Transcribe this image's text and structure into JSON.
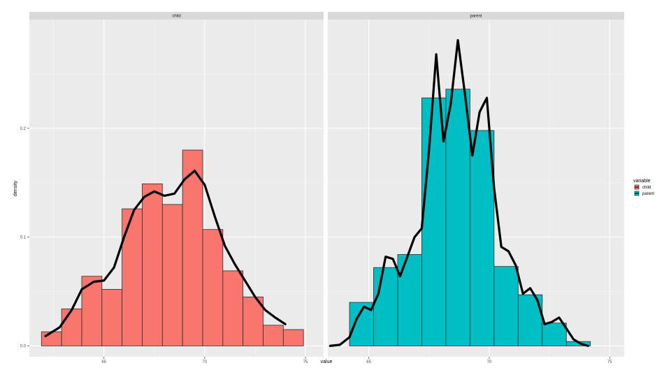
{
  "chart_data": {
    "type": "bar",
    "xlabel": "value",
    "ylabel": "density",
    "ylim": [
      -0.01,
      0.3
    ],
    "yticks": [
      0.0,
      0.1,
      0.2
    ],
    "y_tick_labels": [
      "0.0",
      "0.1",
      "0.2"
    ],
    "grid": true,
    "legend": {
      "title": "variable",
      "position": "right",
      "entries": [
        {
          "name": "child",
          "color": "#F8766D"
        },
        {
          "name": "parent",
          "color": "#00BFC4"
        }
      ]
    },
    "panels": [
      {
        "name": "child",
        "color": "#F8766D",
        "xlim": [
          61.3,
          75.9
        ],
        "xticks": [
          65,
          70,
          75
        ],
        "x_tick_labels": [
          "65",
          "70",
          "75"
        ],
        "bins": [
          {
            "x0": 61.9,
            "x1": 62.9,
            "density": 0.013
          },
          {
            "x0": 62.9,
            "x1": 63.9,
            "density": 0.034
          },
          {
            "x0": 63.9,
            "x1": 64.9,
            "density": 0.064
          },
          {
            "x0": 64.9,
            "x1": 65.9,
            "density": 0.052
          },
          {
            "x0": 65.9,
            "x1": 66.9,
            "density": 0.126
          },
          {
            "x0": 66.9,
            "x1": 67.9,
            "density": 0.149
          },
          {
            "x0": 67.9,
            "x1": 68.9,
            "density": 0.13
          },
          {
            "x0": 68.9,
            "x1": 69.9,
            "density": 0.18
          },
          {
            "x0": 69.9,
            "x1": 70.9,
            "density": 0.107
          },
          {
            "x0": 70.9,
            "x1": 71.9,
            "density": 0.069
          },
          {
            "x0": 71.9,
            "x1": 72.9,
            "density": 0.045
          },
          {
            "x0": 72.9,
            "x1": 73.9,
            "density": 0.019
          },
          {
            "x0": 73.9,
            "x1": 74.9,
            "density": 0.015
          }
        ],
        "density_curve": {
          "x": [
            62.1,
            62.8,
            63.4,
            63.9,
            64.5,
            65.0,
            65.5,
            66.0,
            66.5,
            67.0,
            67.5,
            68.0,
            68.5,
            69.0,
            69.5,
            70.0,
            70.5,
            71.0,
            71.5,
            72.0,
            72.5,
            73.0,
            73.5,
            74.0
          ],
          "y": [
            0.009,
            0.017,
            0.033,
            0.052,
            0.059,
            0.06,
            0.072,
            0.1,
            0.125,
            0.137,
            0.142,
            0.138,
            0.14,
            0.153,
            0.161,
            0.148,
            0.119,
            0.092,
            0.075,
            0.06,
            0.045,
            0.033,
            0.026,
            0.02
          ]
        }
      },
      {
        "name": "parent",
        "color": "#00BFC4",
        "xlim": [
          63.3,
          75.6
        ],
        "xticks": [
          65,
          70,
          75
        ],
        "x_tick_labels": [
          "65",
          "70",
          "75"
        ],
        "bins": [
          {
            "x0": 64.2,
            "x1": 65.2,
            "density": 0.04
          },
          {
            "x0": 65.2,
            "x1": 66.2,
            "density": 0.072
          },
          {
            "x0": 66.2,
            "x1": 67.2,
            "density": 0.084
          },
          {
            "x0": 67.2,
            "x1": 68.2,
            "density": 0.228
          },
          {
            "x0": 68.2,
            "x1": 69.2,
            "density": 0.236
          },
          {
            "x0": 69.2,
            "x1": 70.2,
            "density": 0.198
          },
          {
            "x0": 70.2,
            "x1": 71.2,
            "density": 0.073
          },
          {
            "x0": 71.2,
            "x1": 72.2,
            "density": 0.047
          },
          {
            "x0": 72.2,
            "x1": 73.2,
            "density": 0.021
          },
          {
            "x0": 73.2,
            "x1": 74.2,
            "density": 0.004
          }
        ],
        "density_curve": {
          "x": [
            63.4,
            63.8,
            64.2,
            64.5,
            64.8,
            65.1,
            65.4,
            65.7,
            66.0,
            66.3,
            66.6,
            66.9,
            67.2,
            67.5,
            67.8,
            68.1,
            68.4,
            68.7,
            69.0,
            69.3,
            69.6,
            69.9,
            70.2,
            70.5,
            70.8,
            71.1,
            71.4,
            71.7,
            72.0,
            72.3,
            72.6,
            72.9,
            73.2,
            73.5,
            73.8,
            74.1
          ],
          "y": [
            0.0,
            0.001,
            0.008,
            0.025,
            0.036,
            0.033,
            0.048,
            0.082,
            0.08,
            0.064,
            0.082,
            0.1,
            0.108,
            0.18,
            0.268,
            0.188,
            0.222,
            0.281,
            0.23,
            0.175,
            0.215,
            0.228,
            0.145,
            0.091,
            0.087,
            0.074,
            0.048,
            0.053,
            0.042,
            0.02,
            0.022,
            0.026,
            0.016,
            0.006,
            0.002,
            0.0
          ]
        }
      }
    ]
  }
}
